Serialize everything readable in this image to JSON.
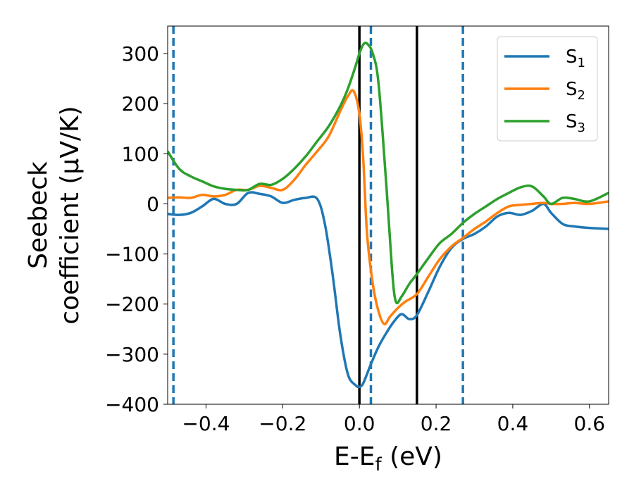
{
  "chart_data": {
    "type": "line",
    "xlabel": "E-E_f (eV)",
    "ylabel_line1": "Seebeck",
    "ylabel_line2": "coefficient  (μV/K)",
    "xlim": [
      -0.5,
      0.65
    ],
    "ylim": [
      -400,
      355
    ],
    "xticks": [
      -0.4,
      -0.2,
      0.0,
      0.2,
      0.4,
      0.6
    ],
    "xtick_labels": [
      "−0.4",
      "−0.2",
      "0.0",
      "0.2",
      "0.4",
      "0.6"
    ],
    "yticks": [
      -400,
      -300,
      -200,
      -100,
      0,
      100,
      200,
      300
    ],
    "ytick_labels": [
      "−400",
      "−300",
      "−200",
      "−100",
      "0",
      "100",
      "200",
      "300"
    ],
    "legend_position": "top-right",
    "vlines_solid": [
      0.0,
      0.15
    ],
    "vlines_dashed": [
      -0.485,
      0.03,
      0.27
    ],
    "vline_solid_color": "#000000",
    "vline_dashed_color": "#1f77b4",
    "series": [
      {
        "name": "S₁",
        "name_base": "S",
        "name_sub": "1",
        "color": "#1f77b4",
        "x": [
          -0.5,
          -0.47,
          -0.44,
          -0.41,
          -0.38,
          -0.35,
          -0.32,
          -0.29,
          -0.26,
          -0.23,
          -0.2,
          -0.17,
          -0.14,
          -0.11,
          -0.09,
          -0.07,
          -0.05,
          -0.03,
          -0.01,
          0.0,
          0.01,
          0.03,
          0.05,
          0.07,
          0.09,
          0.11,
          0.13,
          0.15,
          0.18,
          0.21,
          0.24,
          0.27,
          0.3,
          0.33,
          0.36,
          0.39,
          0.42,
          0.45,
          0.48,
          0.5,
          0.53,
          0.56,
          0.6,
          0.65
        ],
        "y": [
          -20,
          -22,
          -18,
          -5,
          10,
          0,
          0,
          22,
          20,
          15,
          2,
          8,
          12,
          10,
          -40,
          -140,
          -260,
          -340,
          -362,
          -365,
          -358,
          -320,
          -285,
          -258,
          -235,
          -220,
          -230,
          -222,
          -175,
          -125,
          -88,
          -70,
          -60,
          -45,
          -25,
          -18,
          -22,
          -14,
          0,
          -18,
          -40,
          -45,
          -48,
          -50
        ]
      },
      {
        "name": "S₂",
        "name_base": "S",
        "name_sub": "2",
        "color": "#ff7f0e",
        "x": [
          -0.5,
          -0.47,
          -0.44,
          -0.41,
          -0.38,
          -0.35,
          -0.32,
          -0.29,
          -0.26,
          -0.23,
          -0.2,
          -0.17,
          -0.14,
          -0.11,
          -0.08,
          -0.05,
          -0.03,
          -0.015,
          0.0,
          0.01,
          0.02,
          0.035,
          0.05,
          0.065,
          0.08,
          0.1,
          0.12,
          0.15,
          0.18,
          0.21,
          0.24,
          0.27,
          0.3,
          0.33,
          0.36,
          0.39,
          0.42,
          0.45,
          0.48,
          0.5,
          0.53,
          0.56,
          0.6,
          0.65
        ],
        "y": [
          12,
          13,
          12,
          18,
          15,
          18,
          28,
          28,
          36,
          32,
          28,
          48,
          78,
          105,
          135,
          185,
          215,
          225,
          180,
          90,
          -60,
          -160,
          -215,
          -240,
          -225,
          -208,
          -195,
          -180,
          -145,
          -110,
          -85,
          -68,
          -50,
          -35,
          -18,
          -5,
          -2,
          0,
          2,
          0,
          0,
          2,
          0,
          5
        ]
      },
      {
        "name": "S₃",
        "name_base": "S",
        "name_sub": "3",
        "color": "#2ca02c",
        "x": [
          -0.5,
          -0.47,
          -0.44,
          -0.41,
          -0.38,
          -0.35,
          -0.32,
          -0.29,
          -0.26,
          -0.23,
          -0.2,
          -0.17,
          -0.14,
          -0.11,
          -0.08,
          -0.05,
          -0.03,
          -0.01,
          0.0,
          0.01,
          0.02,
          0.035,
          0.05,
          0.07,
          0.085,
          0.095,
          0.11,
          0.13,
          0.15,
          0.18,
          0.21,
          0.24,
          0.27,
          0.3,
          0.33,
          0.36,
          0.39,
          0.42,
          0.45,
          0.48,
          0.5,
          0.53,
          0.56,
          0.6,
          0.65
        ],
        "y": [
          105,
          70,
          55,
          45,
          35,
          30,
          28,
          28,
          40,
          38,
          50,
          70,
          95,
          125,
          155,
          195,
          230,
          275,
          300,
          318,
          320,
          300,
          240,
          40,
          -130,
          -195,
          -185,
          -160,
          -140,
          -108,
          -78,
          -60,
          -38,
          -20,
          -5,
          10,
          22,
          33,
          35,
          15,
          0,
          12,
          10,
          5,
          22
        ]
      }
    ]
  }
}
